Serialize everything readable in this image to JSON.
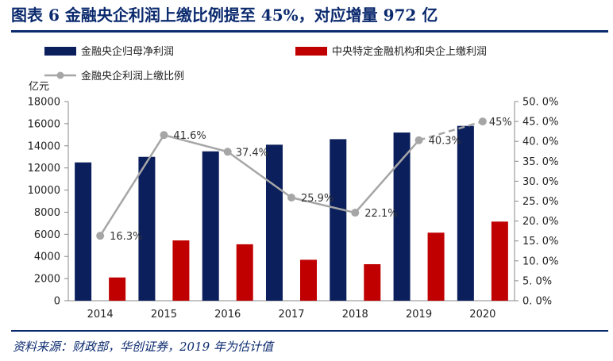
{
  "header": {
    "title": "图表 6   金融央企利润上缴比例提至 45%，对应增量 972 亿"
  },
  "footer": {
    "source": "资料来源：财政部，华创证券，2019 年为估计值"
  },
  "colors": {
    "navy": "#0b1f5c",
    "red": "#c00000",
    "gray_line": "#a6a6a6",
    "title_blue": "#0b2a6e"
  },
  "chart_data": {
    "type": "bar",
    "title": "",
    "y_unit_label": "亿元",
    "categories": [
      "2014",
      "2015",
      "2016",
      "2017",
      "2018",
      "2019",
      "2020"
    ],
    "series": [
      {
        "name": "金融央企归母净利润",
        "kind": "bar",
        "axis": "left",
        "values": [
          12500,
          13000,
          13500,
          14100,
          14600,
          15200,
          15800
        ]
      },
      {
        "name": "中央特定金融机构和央企上缴利润",
        "kind": "bar",
        "axis": "left",
        "values": [
          2100,
          5450,
          5100,
          3700,
          3300,
          6150,
          7150
        ]
      },
      {
        "name": "金融央企利润上缴比例",
        "kind": "line",
        "axis": "right",
        "values": [
          16.3,
          41.6,
          37.4,
          25.9,
          22.1,
          40.3,
          45
        ],
        "labels": [
          "16.3%",
          "41.6%",
          "37.4%",
          "25.9%",
          "22.1%",
          "40.3%",
          "45%"
        ],
        "dashed_from_index": 5
      }
    ],
    "y_left": {
      "min": 0,
      "max": 18000,
      "step": 2000,
      "ticks": [
        "0",
        "2000",
        "4000",
        "6000",
        "8000",
        "10000",
        "12000",
        "14000",
        "16000",
        "18000"
      ]
    },
    "y_right": {
      "min": 0,
      "max": 50,
      "step": 5,
      "ticks": [
        "0. 0%",
        "5. 0%",
        "10. 0%",
        "15. 0%",
        "20. 0%",
        "25. 0%",
        "30. 0%",
        "35. 0%",
        "40. 0%",
        "45. 0%",
        "50. 0%"
      ]
    },
    "grid": false,
    "legend_position": "top"
  }
}
